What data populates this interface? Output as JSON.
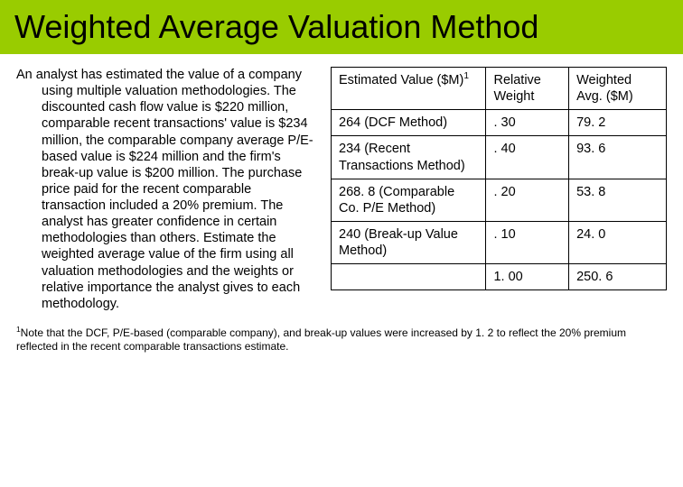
{
  "colors": {
    "title_bg": "#99cc00",
    "title_text": "#000000",
    "body_bg": "#ffffff",
    "body_text": "#000000",
    "border": "#000000"
  },
  "fontsizes": {
    "title": 36,
    "body": 14.5,
    "footnote": 12
  },
  "title": "Weighted Average Valuation Method",
  "body_text": "An analyst has estimated the value of a company using multiple valuation methodologies.  The discounted cash flow value is $220 million, comparable recent transactions' value is $234 million, the comparable company average P/E-based value is $224 million and the firm's break-up value is $200 million.  The purchase price paid for the recent comparable transaction included a 20% premium. The analyst has greater confidence in certain methodologies than others. Estimate the weighted average value of the firm using all valuation methodologies and the weights or relative importance the analyst gives to each methodology.",
  "table": {
    "columns": [
      "Estimated Value ($M)",
      "Relative Weight",
      "Weighted Avg. ($M)"
    ],
    "col0_sup": "1",
    "rows": [
      [
        "264 (DCF Method)",
        ". 30",
        "79. 2"
      ],
      [
        "234 (Recent Transactions Method)",
        ". 40",
        "93. 6"
      ],
      [
        "268. 8 (Comparable Co. P/E Method)",
        ". 20",
        "53. 8"
      ],
      [
        "240 (Break-up Value Method)",
        ". 10",
        "24. 0"
      ],
      [
        "",
        "1. 00",
        "250. 6"
      ]
    ]
  },
  "footnote_sup": "1",
  "footnote_text": "Note that the DCF, P/E-based (comparable company), and break-up values were increased by 1. 2 to reflect the 20% premium reflected in the recent comparable transactions estimate."
}
